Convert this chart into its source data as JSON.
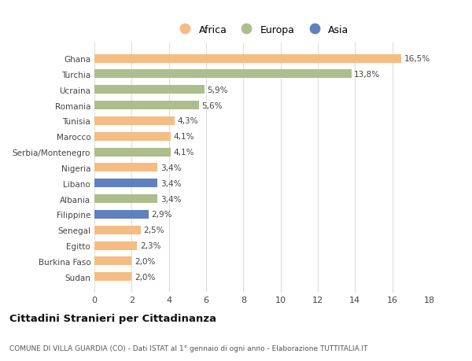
{
  "categories": [
    "Ghana",
    "Turchia",
    "Ucraina",
    "Romania",
    "Tunisia",
    "Marocco",
    "Serbia/Montenegro",
    "Nigeria",
    "Libano",
    "Albania",
    "Filippine",
    "Senegal",
    "Egitto",
    "Burkina Faso",
    "Sudan"
  ],
  "values": [
    16.5,
    13.8,
    5.9,
    5.6,
    4.3,
    4.1,
    4.1,
    3.4,
    3.4,
    3.4,
    2.9,
    2.5,
    2.3,
    2.0,
    2.0
  ],
  "labels": [
    "16,5%",
    "13,8%",
    "5,9%",
    "5,6%",
    "4,3%",
    "4,1%",
    "4,1%",
    "3,4%",
    "3,4%",
    "3,4%",
    "2,9%",
    "2,5%",
    "2,3%",
    "2,0%",
    "2,0%"
  ],
  "continents": [
    "Africa",
    "Europa",
    "Europa",
    "Europa",
    "Africa",
    "Africa",
    "Europa",
    "Africa",
    "Asia",
    "Europa",
    "Asia",
    "Africa",
    "Africa",
    "Africa",
    "Africa"
  ],
  "colors": {
    "Africa": "#F5BC84",
    "Europa": "#ABBE8C",
    "Asia": "#6080C0"
  },
  "legend_labels": [
    "Africa",
    "Europa",
    "Asia"
  ],
  "legend_colors": [
    "#F5BC84",
    "#ABBE8C",
    "#6080C0"
  ],
  "xlim": [
    0,
    18
  ],
  "xticks": [
    0,
    2,
    4,
    6,
    8,
    10,
    12,
    14,
    16,
    18
  ],
  "title": "Cittadini Stranieri per Cittadinanza",
  "subtitle": "COMUNE DI VILLA GUARDIA (CO) - Dati ISTAT al 1° gennaio di ogni anno - Elaborazione TUTTITALIA.IT",
  "bg_color": "#ffffff",
  "grid_color": "#dddddd"
}
